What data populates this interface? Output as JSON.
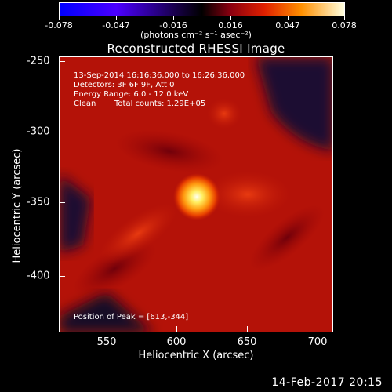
{
  "colorbar": {
    "tick_labels": [
      "-0.078",
      "-0.047",
      "-0.016",
      "0.016",
      "0.047",
      "0.078"
    ],
    "units": "(photons cm⁻² s⁻¹ asec⁻²)"
  },
  "title": "Reconstructed RHESSI Image",
  "info": {
    "time_range": "13-Sep-2014 16:16:36.000 to 16:26:36.000",
    "detectors": "Detectors: 3F 6F 9F, Att 0",
    "energy": "Energy Range: 6.0 - 12.0 keV",
    "method": "Clean",
    "counts": "Total counts: 1.29E+05",
    "peak": "Position of Peak = [613,-344]"
  },
  "axes": {
    "xlabel": "Heliocentric X (arcsec)",
    "ylabel": "Heliocentric Y (arcsec)",
    "x_ticks": [
      "550",
      "600",
      "650",
      "700"
    ],
    "y_ticks": [
      "-250",
      "-300",
      "-350",
      "-400"
    ]
  },
  "footer": "14-Feb-2017 20:15"
}
